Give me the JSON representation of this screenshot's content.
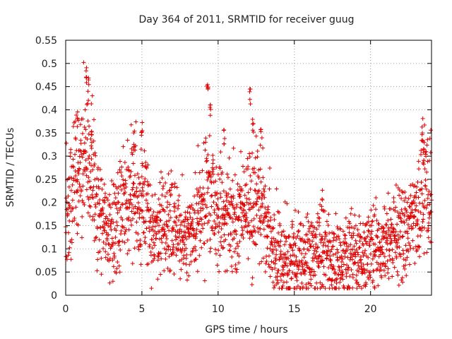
{
  "chart_data": {
    "type": "scatter",
    "title": "Day 364 of 2011, SRMTID for receiver guug",
    "xlabel": "GPS time / hours",
    "ylabel": "SRMTID / TECUs",
    "xlim": [
      0,
      24
    ],
    "ylim": [
      0,
      0.55
    ],
    "grid": true,
    "marker": "+",
    "color": "#e00000",
    "x_ticks": [
      {
        "value": 0,
        "label": "0"
      },
      {
        "value": 5,
        "label": "5"
      },
      {
        "value": 10,
        "label": "10"
      },
      {
        "value": 15,
        "label": "15"
      },
      {
        "value": 20,
        "label": "20"
      }
    ],
    "y_ticks": [
      {
        "value": 0,
        "label": "0"
      },
      {
        "value": 0.05,
        "label": "0.05"
      },
      {
        "value": 0.1,
        "label": "0.1"
      },
      {
        "value": 0.15,
        "label": "0.15"
      },
      {
        "value": 0.2,
        "label": "0.2"
      },
      {
        "value": 0.25,
        "label": "0.25"
      },
      {
        "value": 0.3,
        "label": "0.3"
      },
      {
        "value": 0.35,
        "label": "0.35"
      },
      {
        "value": 0.4,
        "label": "0.4"
      },
      {
        "value": 0.45,
        "label": "0.45"
      },
      {
        "value": 0.5,
        "label": "0.5"
      },
      {
        "value": 0.55,
        "label": "0.55"
      }
    ],
    "trend": [
      [
        0.0,
        0.16
      ],
      [
        0.3,
        0.19
      ],
      [
        0.6,
        0.24
      ],
      [
        0.9,
        0.28
      ],
      [
        1.2,
        0.3
      ],
      [
        1.5,
        0.3
      ],
      [
        1.8,
        0.27
      ],
      [
        2.1,
        0.2
      ],
      [
        2.5,
        0.14
      ],
      [
        3.0,
        0.13
      ],
      [
        3.5,
        0.16
      ],
      [
        4.0,
        0.2
      ],
      [
        4.5,
        0.22
      ],
      [
        5.0,
        0.19
      ],
      [
        5.5,
        0.16
      ],
      [
        6.0,
        0.14
      ],
      [
        6.5,
        0.15
      ],
      [
        7.0,
        0.14
      ],
      [
        7.5,
        0.13
      ],
      [
        8.0,
        0.13
      ],
      [
        8.5,
        0.15
      ],
      [
        9.0,
        0.18
      ],
      [
        9.5,
        0.22
      ],
      [
        10.0,
        0.19
      ],
      [
        10.5,
        0.17
      ],
      [
        11.0,
        0.16
      ],
      [
        11.5,
        0.17
      ],
      [
        12.0,
        0.2
      ],
      [
        12.5,
        0.2
      ],
      [
        13.0,
        0.17
      ],
      [
        13.5,
        0.13
      ],
      [
        14.0,
        0.09
      ],
      [
        14.5,
        0.07
      ],
      [
        15.0,
        0.07
      ],
      [
        15.5,
        0.08
      ],
      [
        16.0,
        0.1
      ],
      [
        16.5,
        0.11
      ],
      [
        17.0,
        0.1
      ],
      [
        17.5,
        0.09
      ],
      [
        18.0,
        0.08
      ],
      [
        18.5,
        0.09
      ],
      [
        19.0,
        0.09
      ],
      [
        19.5,
        0.09
      ],
      [
        20.0,
        0.1
      ],
      [
        20.5,
        0.11
      ],
      [
        21.0,
        0.11
      ],
      [
        21.5,
        0.12
      ],
      [
        22.0,
        0.14
      ],
      [
        22.5,
        0.14
      ],
      [
        23.0,
        0.16
      ],
      [
        23.5,
        0.22
      ],
      [
        24.0,
        0.25
      ]
    ],
    "peaks": [
      [
        0.8,
        0.4
      ],
      [
        1.35,
        0.5
      ],
      [
        1.5,
        0.47
      ],
      [
        1.7,
        0.36
      ],
      [
        4.5,
        0.36
      ],
      [
        5.0,
        0.38
      ],
      [
        9.3,
        0.46
      ],
      [
        9.5,
        0.42
      ],
      [
        10.4,
        0.36
      ],
      [
        12.1,
        0.45
      ],
      [
        12.3,
        0.4
      ],
      [
        12.8,
        0.37
      ],
      [
        16.8,
        0.23
      ],
      [
        23.4,
        0.37
      ],
      [
        23.5,
        0.33
      ]
    ]
  }
}
